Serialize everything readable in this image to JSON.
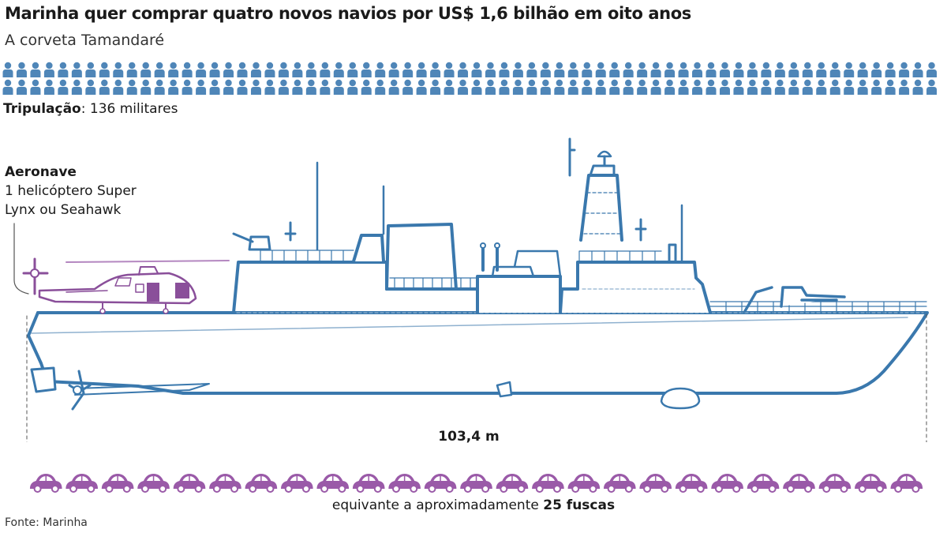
{
  "title": "Marinha quer comprar quatro novos navios por US$ 1,6 bilhão em oito anos",
  "subtitle": "A corveta Tamandaré",
  "crew": {
    "label": "Tripulação",
    "value": ": 136 militares",
    "count": 136
  },
  "aircraft": {
    "heading": "Aeronave",
    "line1": "1 helicóptero Super",
    "line2": "Lynx ou Seahawk"
  },
  "ship": {
    "length_label": "103,4 m"
  },
  "comparison": {
    "prefix": "equivante a aproximadamente ",
    "highlight": "25 fuscas",
    "count": 25
  },
  "source": "Fonte: Marinha",
  "colors": {
    "ship": "#3a78ad",
    "ship_light": "#8fb1cf",
    "crew": "#4f86b8",
    "helicopter": "#8a4f9a",
    "car": "#9a5aa8"
  }
}
